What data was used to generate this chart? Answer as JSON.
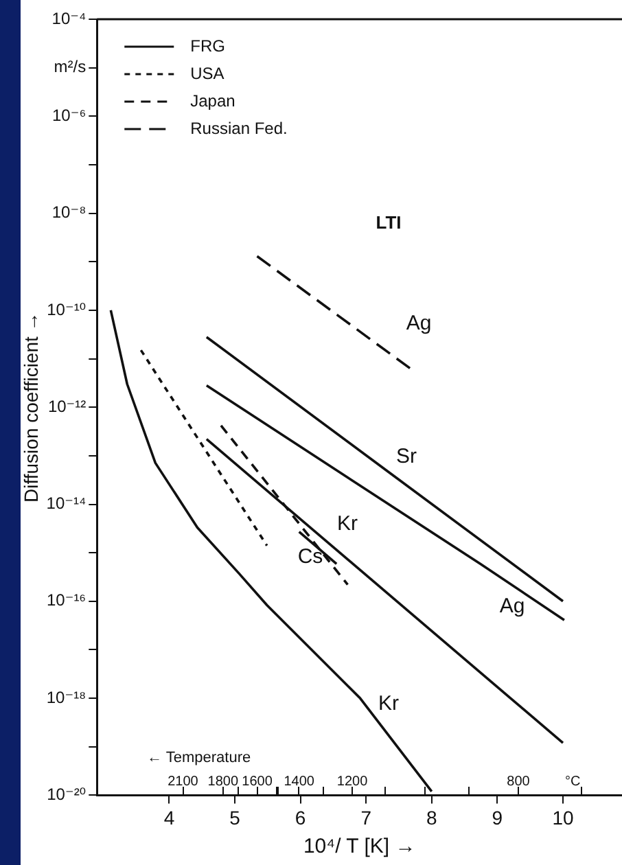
{
  "chart_data": {
    "type": "line",
    "xlabel": "10⁴/ T [K] →",
    "ylabel": "Diffusion coefficient →",
    "log": "y",
    "grid": false,
    "marker": "none",
    "legend": "top left",
    "xlim": [
      2.9,
      10.9
    ],
    "xticks": [
      4,
      5,
      6,
      7,
      8,
      9,
      10
    ],
    "ylim": [
      1e-20,
      0.0001
    ],
    "yticks": [
      {
        "value": 0.0001,
        "label": "10⁻⁴"
      },
      {
        "value": 1e-05,
        "label": "m²/s"
      },
      {
        "value": 1e-06,
        "label": "10⁻⁶"
      },
      {
        "value": 1e-07,
        "label": null
      },
      {
        "value": 1e-08,
        "label": "10⁻⁸"
      },
      {
        "value": 1e-09,
        "label": null
      },
      {
        "value": 1e-10,
        "label": "10⁻¹⁰"
      },
      {
        "value": 1e-11,
        "label": null
      },
      {
        "value": 1e-12,
        "label": "10⁻¹²"
      },
      {
        "value": 1e-13,
        "label": null
      },
      {
        "value": 1e-14,
        "label": "10⁻¹⁴"
      },
      {
        "value": 1e-15,
        "label": null
      },
      {
        "value": 1e-16,
        "label": "10⁻¹⁶"
      },
      {
        "value": 1e-17,
        "label": null
      },
      {
        "value": 1e-18,
        "label": "10⁻¹⁸"
      },
      {
        "value": 1e-19,
        "label": null
      },
      {
        "value": 1e-20,
        "label": "10⁻²⁰"
      }
    ],
    "series": [
      {
        "name": "FRG",
        "color": "#111111",
        "line_style": "solid",
        "x": [
          4.57,
          7.3,
          10.0
        ],
        "values": [
          2.8e-11,
          5.1e-14,
          1e-16
        ]
      },
      {
        "name": "USA",
        "color": "#111111",
        "line_style": "dotted",
        "x": [
          3.57,
          5.49
        ],
        "values": [
          1.5e-11,
          1.4e-15
        ]
      },
      {
        "name": "Japan",
        "color": "#111111",
        "line_style": "dashed",
        "x": [
          4.79,
          6.72
        ],
        "values": [
          4.2e-13,
          2.2e-16
        ]
      },
      {
        "name": "Russian Fed.",
        "color": "#111111",
        "line_style": "longdash",
        "x": [
          5.34,
          7.68
        ],
        "values": [
          1.3e-09,
          6.2e-12
        ]
      },
      {
        "color": "#111111",
        "line_style": "solid",
        "x": [
          4.57,
          8.74,
          10.02
        ],
        "values": [
          2.8e-12,
          5.9e-16,
          4.1e-17
        ]
      },
      {
        "color": "#111111",
        "line_style": "solid",
        "x": [
          3.11,
          3.36,
          3.79,
          4.43,
          5.06,
          5.49,
          6.91,
          8.0
        ],
        "values": [
          1e-10,
          3e-12,
          7.1e-14,
          3.3e-15,
          3.8e-16,
          8.3e-17,
          1e-18,
          1.2e-20
        ]
      },
      {
        "color": "#111111",
        "line_style": "solid",
        "x": [
          4.57,
          10.0
        ],
        "values": [
          2.2e-13,
          1.2e-19
        ]
      },
      {
        "color": "#111111",
        "line_style": "solid",
        "x": [
          5.98,
          6.55
        ],
        "values": [
          2.7e-15,
          5.9e-16
        ]
      }
    ],
    "annotations": [
      "LTI",
      "← Temperature",
      "2100",
      "1800",
      "1600",
      "1400",
      "1200",
      "800",
      "°C",
      "Ag",
      "Sr",
      "Kr",
      "Cs",
      "Ag",
      "Kr"
    ]
  }
}
